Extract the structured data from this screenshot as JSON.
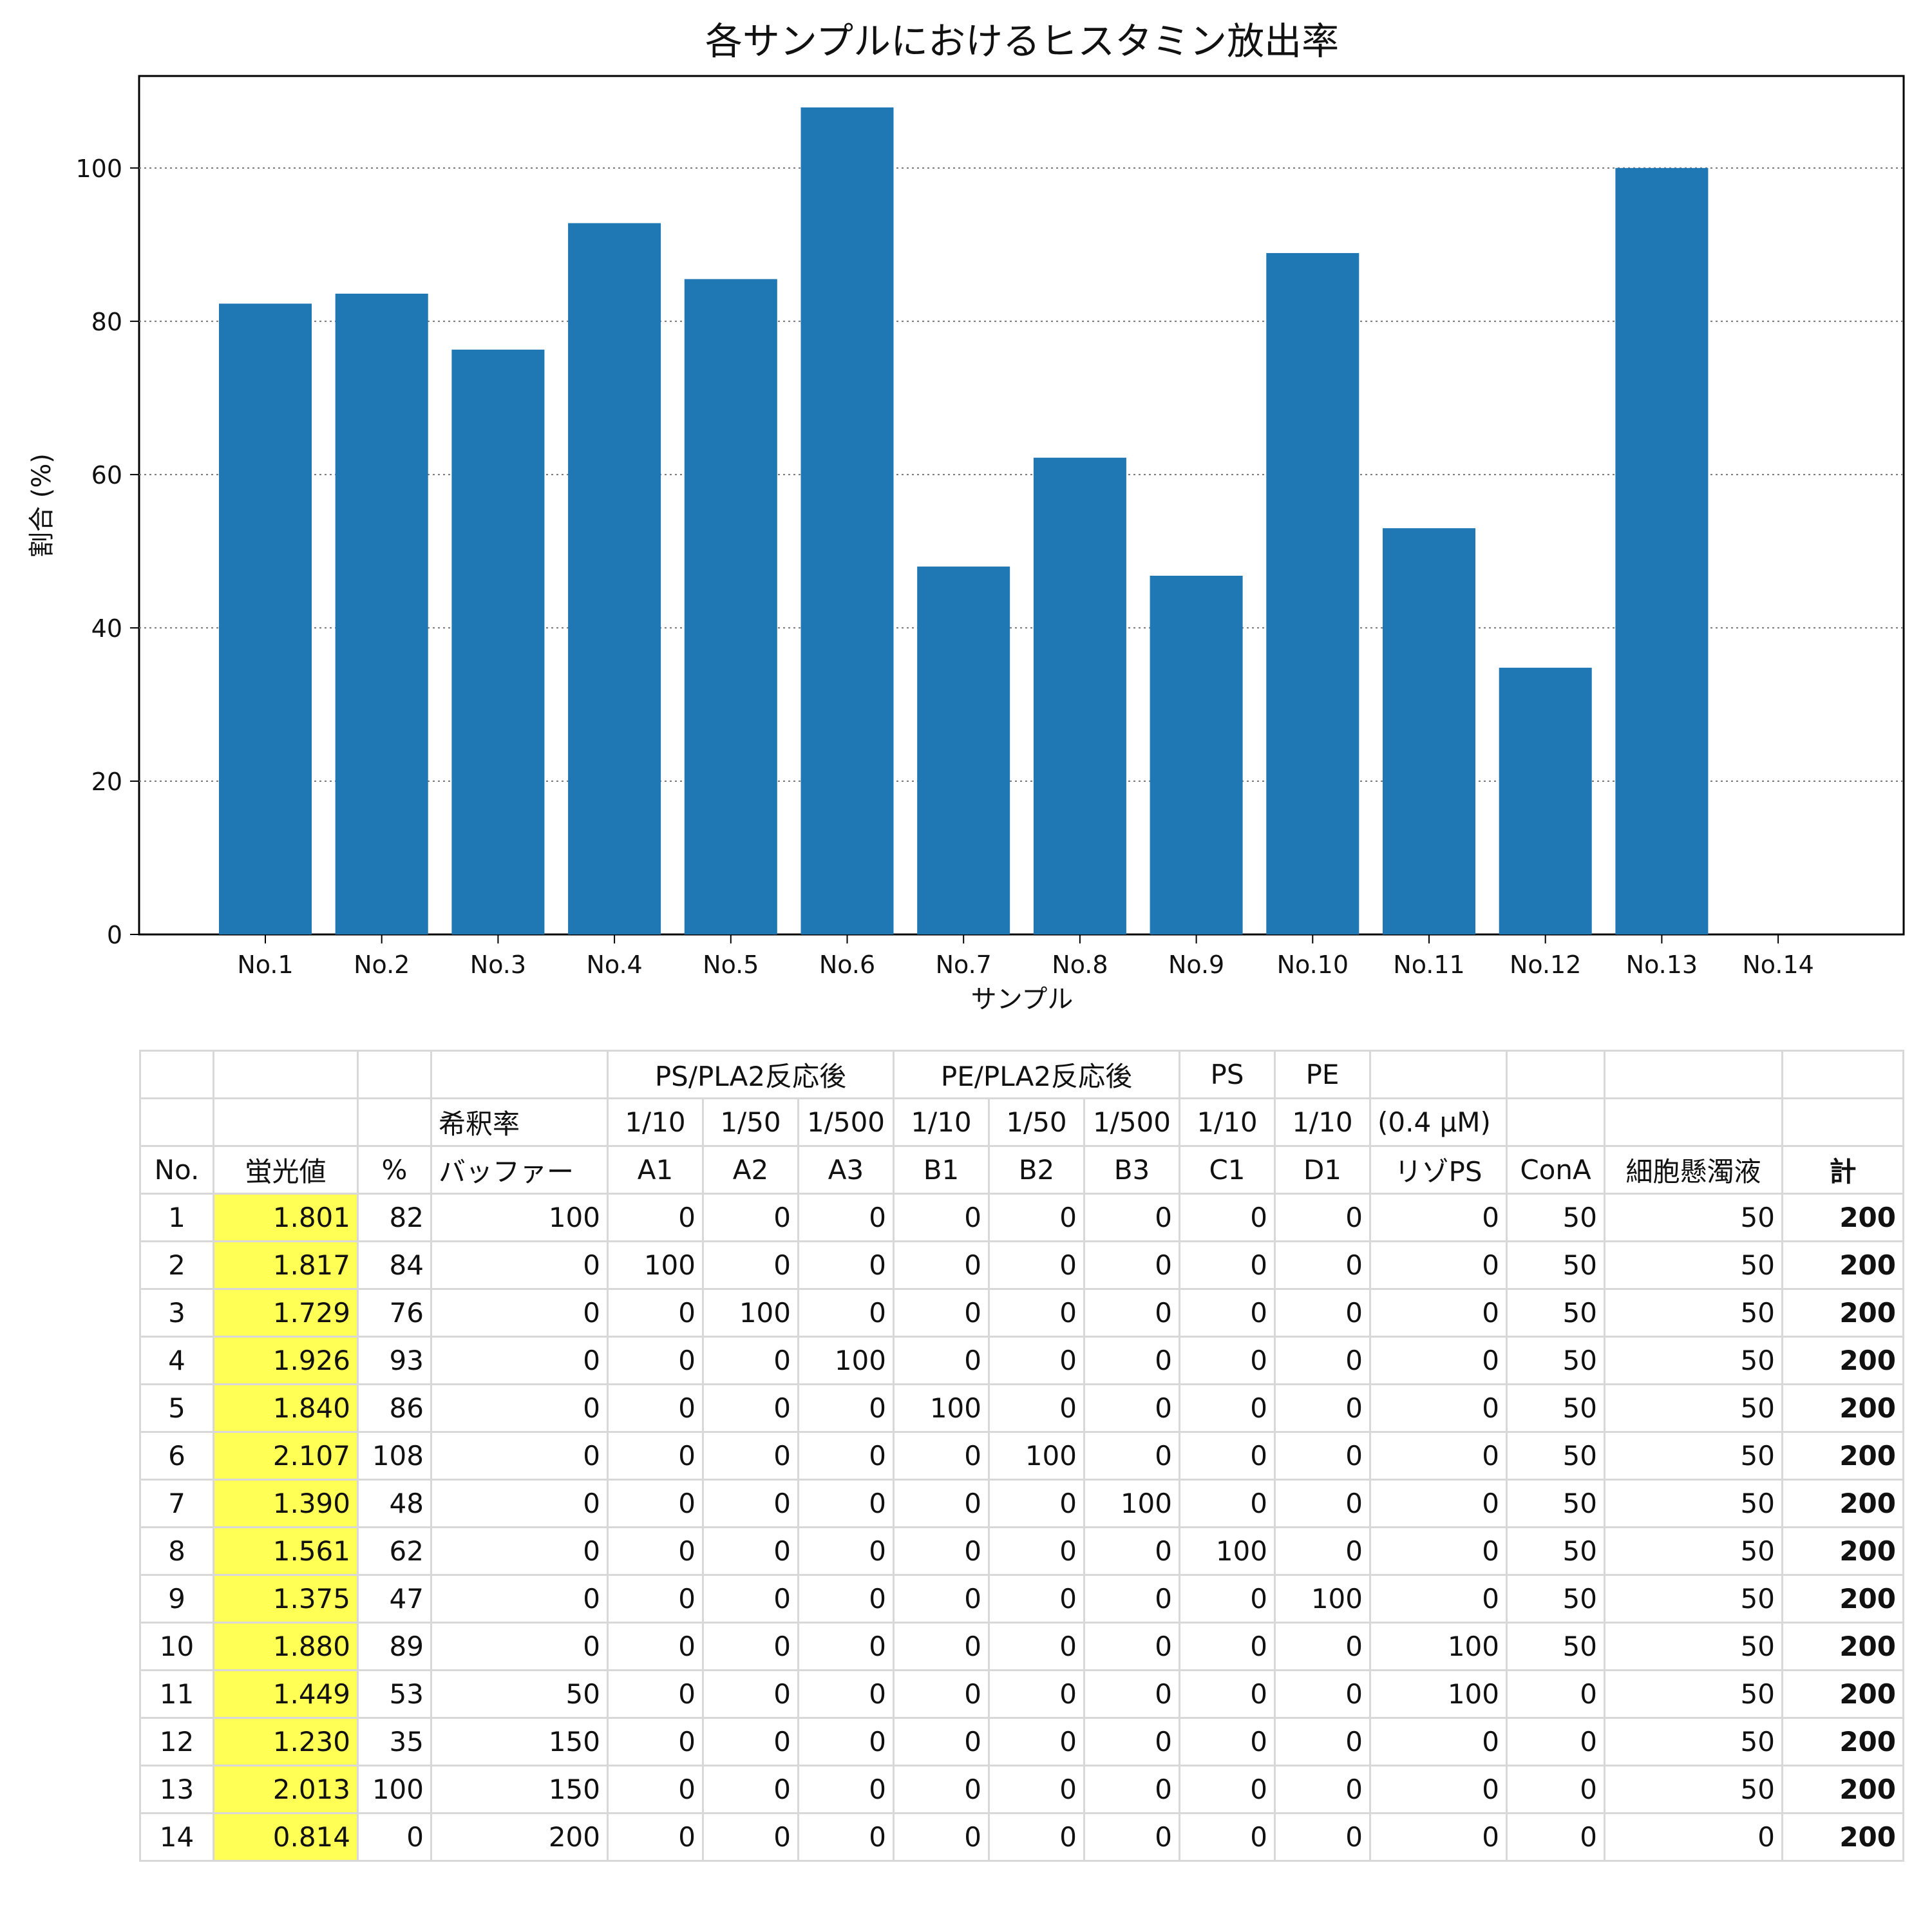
{
  "chart_data": {
    "type": "bar",
    "title": "各サンプルにおけるヒスタミン放出率",
    "xlabel": "サンプル",
    "ylabel": "割合 (%)",
    "categories": [
      "No.1",
      "No.2",
      "No.3",
      "No.4",
      "No.5",
      "No.6",
      "No.7",
      "No.8",
      "No.9",
      "No.10",
      "No.11",
      "No.12",
      "No.13",
      "No.14"
    ],
    "values": [
      82.3,
      83.6,
      76.3,
      92.8,
      85.5,
      107.9,
      48.0,
      62.2,
      46.8,
      88.9,
      53.0,
      34.8,
      100.0,
      0.0
    ],
    "ylim": [
      0,
      112
    ],
    "yticks": [
      0,
      20,
      40,
      60,
      80,
      100
    ],
    "grid": "y-dotted",
    "bar_color": "#1f77b4"
  },
  "table": {
    "header_row1": [
      "",
      "",
      "",
      "",
      "PS/PLA2反応後",
      "PE/PLA2反応後",
      "PS",
      "PE",
      "",
      "",
      "",
      ""
    ],
    "header_row2": [
      "",
      "",
      "",
      "希釈率",
      "1/10",
      "1/50",
      "1/500",
      "1/10",
      "1/50",
      "1/500",
      "1/10",
      "1/10",
      "(0.4 μM)",
      "",
      "",
      ""
    ],
    "header_row3": [
      "No.",
      "蛍光値",
      "%",
      "バッファー",
      "A1",
      "A2",
      "A3",
      "B1",
      "B2",
      "B3",
      "C1",
      "D1",
      "リゾPS",
      "ConA",
      "細胞懸濁液",
      "計"
    ],
    "rows": [
      [
        "1",
        "1.801",
        "82",
        "100",
        "0",
        "0",
        "0",
        "0",
        "0",
        "0",
        "0",
        "0",
        "0",
        "50",
        "50",
        "200"
      ],
      [
        "2",
        "1.817",
        "84",
        "0",
        "100",
        "0",
        "0",
        "0",
        "0",
        "0",
        "0",
        "0",
        "0",
        "50",
        "50",
        "200"
      ],
      [
        "3",
        "1.729",
        "76",
        "0",
        "0",
        "100",
        "0",
        "0",
        "0",
        "0",
        "0",
        "0",
        "0",
        "50",
        "50",
        "200"
      ],
      [
        "4",
        "1.926",
        "93",
        "0",
        "0",
        "0",
        "100",
        "0",
        "0",
        "0",
        "0",
        "0",
        "0",
        "50",
        "50",
        "200"
      ],
      [
        "5",
        "1.840",
        "86",
        "0",
        "0",
        "0",
        "0",
        "100",
        "0",
        "0",
        "0",
        "0",
        "0",
        "50",
        "50",
        "200"
      ],
      [
        "6",
        "2.107",
        "108",
        "0",
        "0",
        "0",
        "0",
        "0",
        "100",
        "0",
        "0",
        "0",
        "0",
        "50",
        "50",
        "200"
      ],
      [
        "7",
        "1.390",
        "48",
        "0",
        "0",
        "0",
        "0",
        "0",
        "0",
        "100",
        "0",
        "0",
        "0",
        "50",
        "50",
        "200"
      ],
      [
        "8",
        "1.561",
        "62",
        "0",
        "0",
        "0",
        "0",
        "0",
        "0",
        "0",
        "100",
        "0",
        "0",
        "50",
        "50",
        "200"
      ],
      [
        "9",
        "1.375",
        "47",
        "0",
        "0",
        "0",
        "0",
        "0",
        "0",
        "0",
        "0",
        "100",
        "0",
        "50",
        "50",
        "200"
      ],
      [
        "10",
        "1.880",
        "89",
        "0",
        "0",
        "0",
        "0",
        "0",
        "0",
        "0",
        "0",
        "0",
        "100",
        "50",
        "50",
        "200"
      ],
      [
        "11",
        "1.449",
        "53",
        "50",
        "0",
        "0",
        "0",
        "0",
        "0",
        "0",
        "0",
        "0",
        "100",
        "0",
        "50",
        "200"
      ],
      [
        "12",
        "1.230",
        "35",
        "150",
        "0",
        "0",
        "0",
        "0",
        "0",
        "0",
        "0",
        "0",
        "0",
        "0",
        "50",
        "200"
      ],
      [
        "13",
        "2.013",
        "100",
        "150",
        "0",
        "0",
        "0",
        "0",
        "0",
        "0",
        "0",
        "0",
        "0",
        "0",
        "50",
        "200"
      ],
      [
        "14",
        "0.814",
        "0",
        "200",
        "0",
        "0",
        "0",
        "0",
        "0",
        "0",
        "0",
        "0",
        "0",
        "0",
        "0",
        "200"
      ]
    ],
    "fluor_highlight_color": "#ffff55"
  }
}
